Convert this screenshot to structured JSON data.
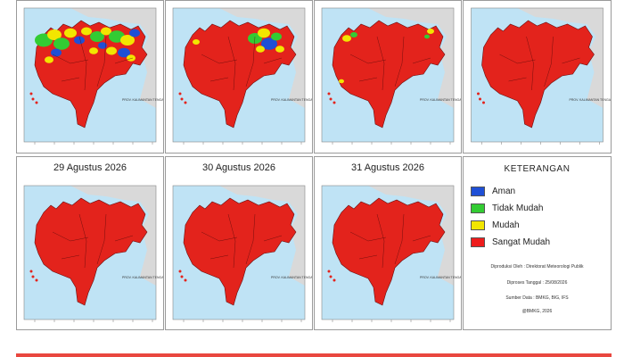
{
  "panels": [
    {
      "date": "",
      "risk": "mixed-high"
    },
    {
      "date": "",
      "risk": "mixed-mid"
    },
    {
      "date": "",
      "risk": "mixed-low"
    },
    {
      "date": "",
      "risk": "red"
    },
    {
      "date": "29 Agustus 2026",
      "risk": "red"
    },
    {
      "date": "30 Agustus 2026",
      "risk": "red"
    },
    {
      "date": "31 Agustus 2026",
      "risk": "red"
    }
  ],
  "legend": {
    "title": "KETERANGAN",
    "items": [
      {
        "label": "Aman",
        "color": "#1f4fd6"
      },
      {
        "label": "Tidak Mudah",
        "color": "#33cc33"
      },
      {
        "label": "Mudah",
        "color": "#f2e600"
      },
      {
        "label": "Sangat Mudah",
        "color": "#ee1c1c"
      }
    ],
    "produced_by": "Diproduksi Oleh : Direktorat Meteorologi Publik",
    "issued": "Diproses Tanggal : 25/08/2026",
    "sources": "Sumber Data : BMKG, BIG, IFS",
    "copyright": "@BMKG, 2026"
  },
  "map_labels": {
    "province": "PROV. KALIMANTAN TENGAH"
  },
  "colors": {
    "sea": "#bfe3f5",
    "land_red": "#e3231c",
    "neighbor": "#d9d9d9",
    "accent_bar": "#e9473f"
  }
}
